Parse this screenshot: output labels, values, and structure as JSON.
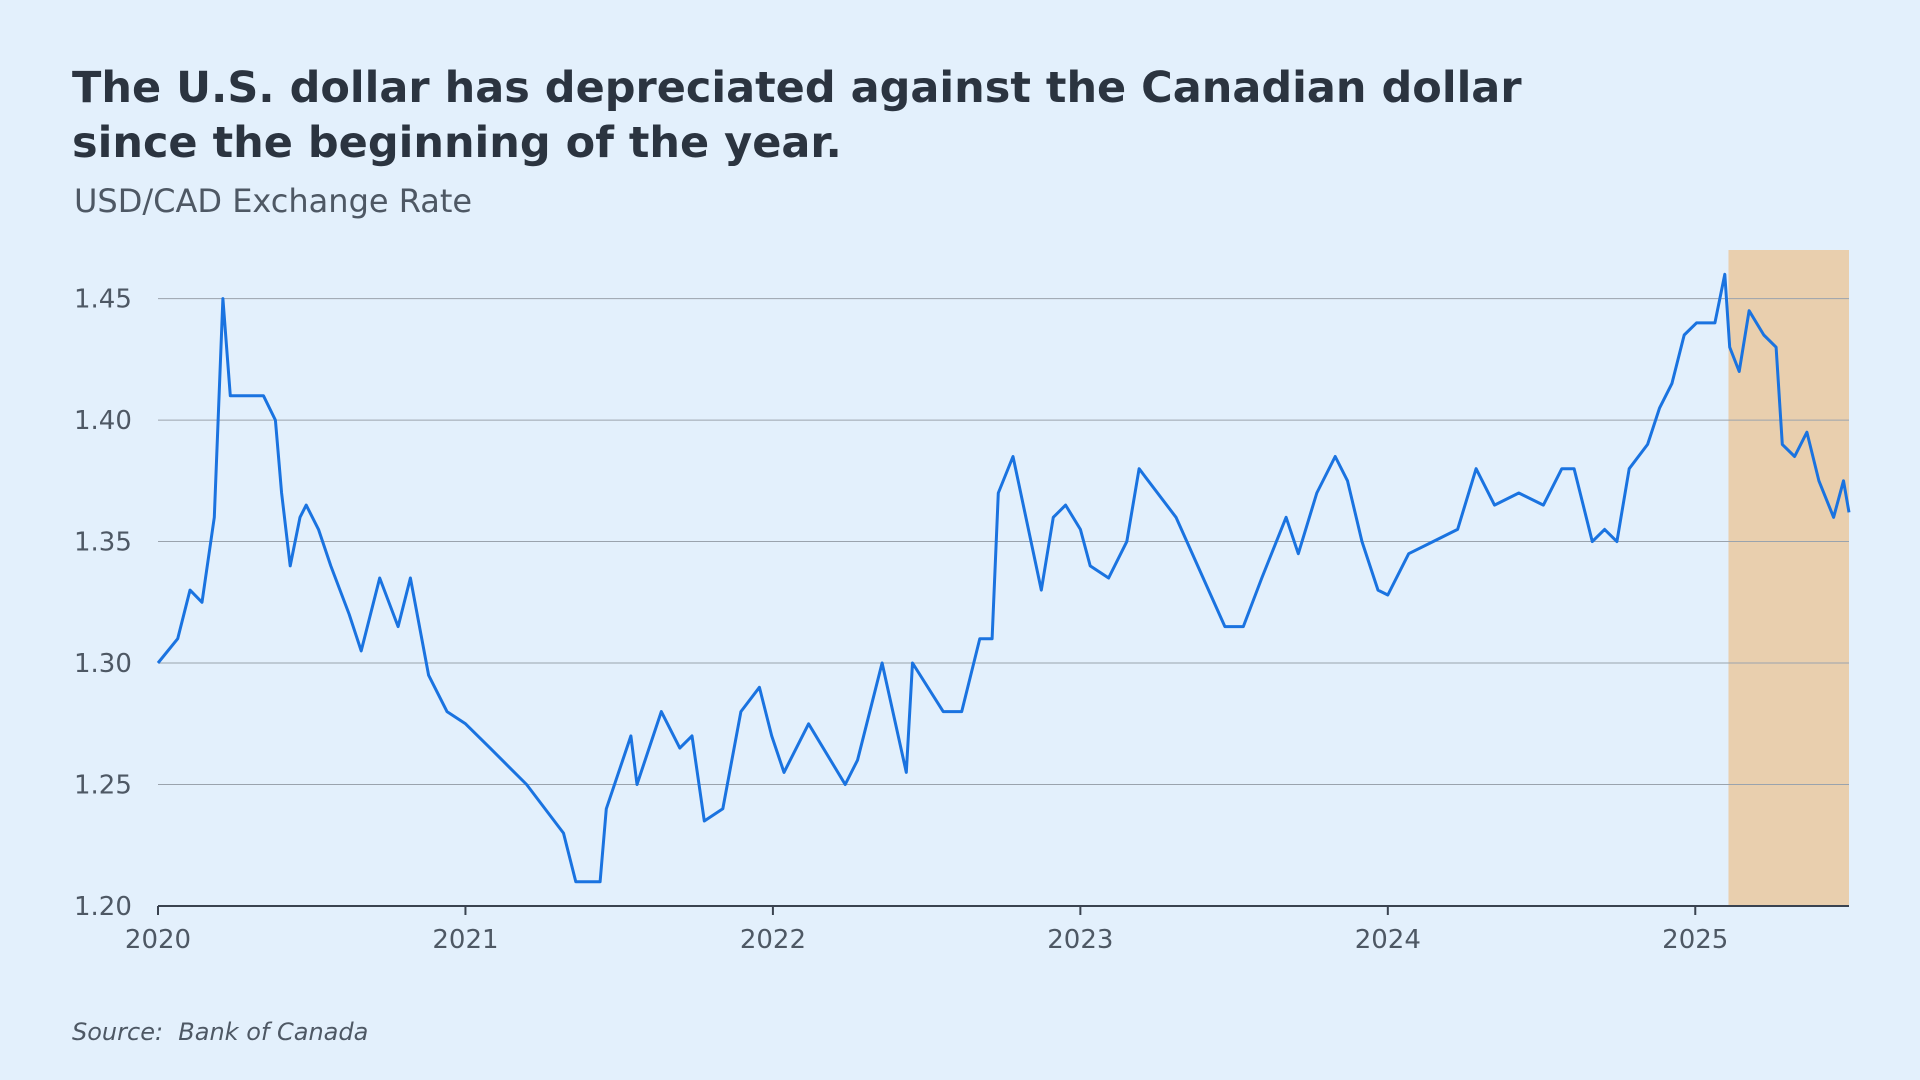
{
  "chart_data": {
    "type": "line",
    "title": [
      "The U.S. dollar has depreciated against the Canadian dollar",
      "since the beginning of the year."
    ],
    "subtitle": "USD/CAD Exchange Rate",
    "source": "Source:  Bank of Canada",
    "x": [
      2020.0,
      2020.064,
      2020.104,
      2020.143,
      2020.183,
      2020.211,
      2020.235,
      2020.283,
      2020.343,
      2020.382,
      2020.402,
      2020.43,
      2020.462,
      2020.482,
      2020.522,
      2020.562,
      2020.622,
      2020.661,
      2020.721,
      2020.781,
      2020.821,
      2020.88,
      2020.94,
      2021.0,
      2021.08,
      2021.199,
      2021.319,
      2021.359,
      2021.438,
      2021.458,
      2021.538,
      2021.558,
      2021.637,
      2021.697,
      2021.737,
      2021.777,
      2021.837,
      2021.896,
      2021.956,
      2021.996,
      2022.036,
      2022.116,
      2022.235,
      2022.275,
      2022.355,
      2022.434,
      2022.454,
      2022.554,
      2022.614,
      2022.673,
      2022.713,
      2022.733,
      2022.781,
      2022.873,
      2022.912,
      2022.952,
      2023.0,
      2023.032,
      2023.092,
      2023.151,
      2023.191,
      2023.311,
      2023.47,
      2023.53,
      2023.59,
      2023.669,
      2023.709,
      2023.769,
      2023.829,
      2023.869,
      2023.916,
      2023.968,
      2024.0,
      2024.068,
      2024.147,
      2024.227,
      2024.287,
      2024.347,
      2024.426,
      2024.506,
      2024.566,
      2024.606,
      2024.665,
      2024.705,
      2024.745,
      2024.785,
      2024.845,
      2024.884,
      2024.924,
      2024.964,
      2025.004,
      2025.064,
      2025.096,
      2025.112,
      2025.143,
      2025.175,
      2025.223,
      2025.263,
      2025.283,
      2025.323,
      2025.363,
      2025.402,
      2025.45,
      2025.482,
      2025.5
    ],
    "series": [
      {
        "color": "#1a73e0",
        "values": [
          1.3,
          1.31,
          1.33,
          1.325,
          1.36,
          1.45,
          1.41,
          1.41,
          1.41,
          1.4,
          1.37,
          1.34,
          1.36,
          1.365,
          1.355,
          1.34,
          1.32,
          1.305,
          1.335,
          1.315,
          1.335,
          1.295,
          1.28,
          1.275,
          1.265,
          1.25,
          1.23,
          1.21,
          1.21,
          1.24,
          1.27,
          1.25,
          1.28,
          1.265,
          1.27,
          1.235,
          1.24,
          1.28,
          1.29,
          1.27,
          1.255,
          1.275,
          1.25,
          1.26,
          1.3,
          1.255,
          1.3,
          1.28,
          1.28,
          1.31,
          1.31,
          1.37,
          1.385,
          1.33,
          1.36,
          1.365,
          1.355,
          1.34,
          1.335,
          1.35,
          1.38,
          1.36,
          1.315,
          1.315,
          1.335,
          1.36,
          1.345,
          1.37,
          1.385,
          1.375,
          1.35,
          1.33,
          1.328,
          1.345,
          1.35,
          1.355,
          1.38,
          1.365,
          1.37,
          1.365,
          1.38,
          1.38,
          1.35,
          1.355,
          1.35,
          1.38,
          1.39,
          1.405,
          1.415,
          1.435,
          1.44,
          1.44,
          1.46,
          1.43,
          1.42,
          1.445,
          1.435,
          1.43,
          1.39,
          1.385,
          1.395,
          1.375,
          1.36,
          1.375,
          1.362
        ]
      }
    ],
    "highlight": {
      "xlim": [
        2025.108,
        2025.5
      ],
      "color": "#e9cfae"
    },
    "xlim": [
      2020,
      2025.5
    ],
    "xticks": [
      2020,
      2021,
      2022,
      2023,
      2024,
      2025
    ],
    "ylim": [
      1.2,
      1.47
    ],
    "yticks": [
      {
        "value": 1.2,
        "label": "1.20"
      },
      {
        "value": 1.25,
        "label": "1.25"
      },
      {
        "value": 1.3,
        "label": "1.30"
      },
      {
        "value": 1.35,
        "label": "1.35"
      },
      {
        "value": 1.4,
        "label": "1.40"
      },
      {
        "value": 1.45,
        "label": "1.45"
      }
    ],
    "grid": true
  }
}
